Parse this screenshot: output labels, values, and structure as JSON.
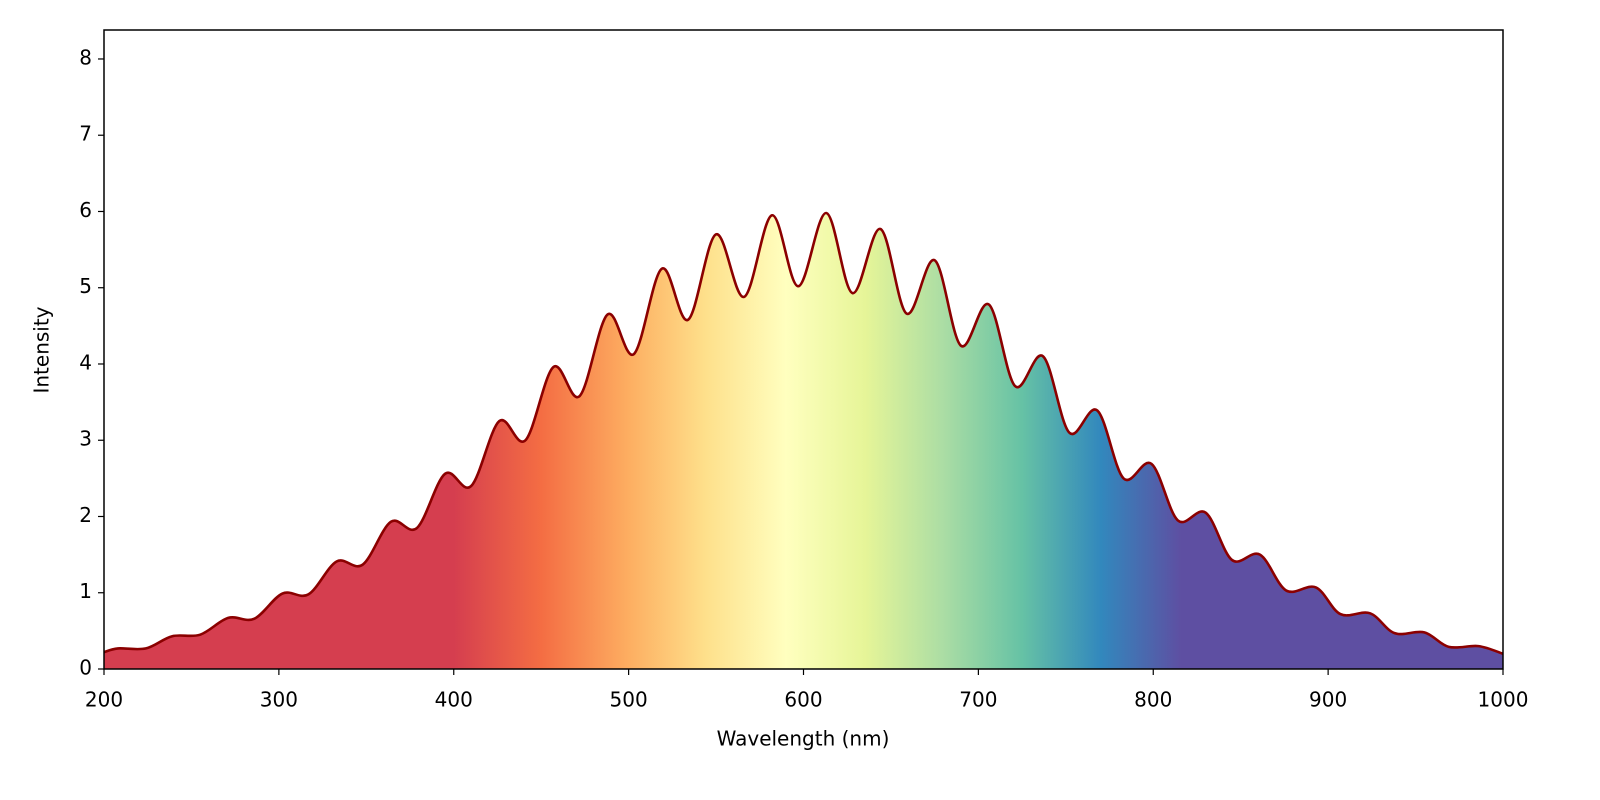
{
  "chart_data": {
    "type": "area",
    "x_label": "Wavelength (nm)",
    "y_label": "Intensity",
    "x": [
      200,
      208,
      224,
      239,
      255,
      271,
      286,
      302,
      317,
      333,
      348,
      364,
      379,
      395,
      410,
      426,
      441,
      457,
      472,
      488,
      503,
      519,
      534,
      550,
      566,
      582,
      597,
      613,
      628,
      644,
      659,
      675,
      690,
      706,
      721,
      737,
      752,
      768,
      783,
      799,
      814,
      830,
      845,
      861,
      876,
      893,
      907,
      924,
      938,
      955,
      969,
      986,
      1000
    ],
    "values": [
      0.22,
      0.27,
      0.27,
      0.43,
      0.45,
      0.67,
      0.66,
      0.99,
      0.98,
      1.41,
      1.37,
      1.93,
      1.85,
      2.56,
      2.4,
      3.25,
      3.0,
      3.96,
      3.58,
      4.65,
      4.13,
      5.25,
      4.58,
      5.7,
      4.88,
      5.95,
      5.02,
      5.98,
      4.93,
      5.77,
      4.66,
      5.36,
      4.24,
      4.78,
      3.71,
      4.1,
      3.1,
      3.39,
      2.5,
      2.69,
      1.95,
      2.05,
      1.43,
      1.5,
      1.03,
      1.07,
      0.72,
      0.73,
      0.47,
      0.48,
      0.29,
      0.3,
      0.2
    ],
    "line_color": "#8b0000",
    "xlim": [
      200,
      1000
    ],
    "ylim": [
      0,
      8.38
    ],
    "xticks": [
      200,
      300,
      400,
      500,
      600,
      700,
      800,
      900,
      1000
    ],
    "yticks": [
      0,
      1,
      2,
      3,
      4,
      5,
      6,
      7,
      8
    ]
  }
}
